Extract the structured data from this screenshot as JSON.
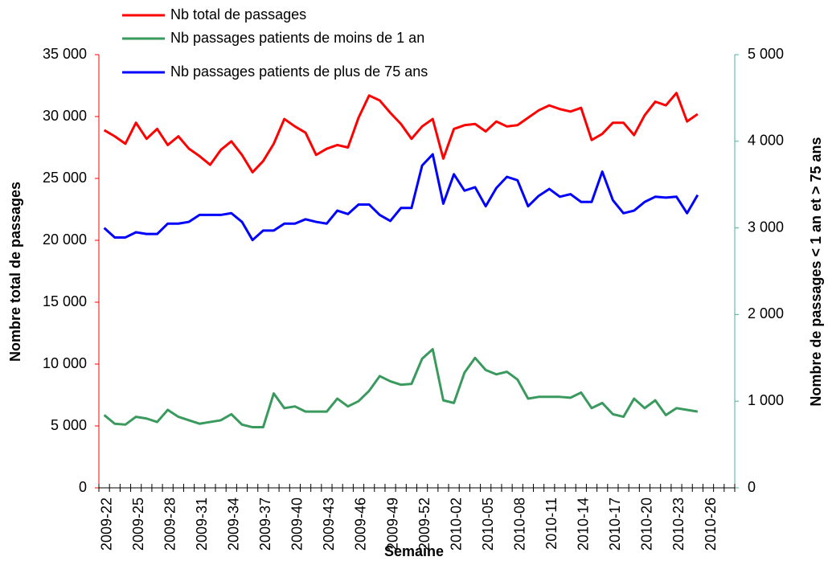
{
  "chart_data": {
    "type": "line",
    "xlabel": "Semaine",
    "ylabel": "Nombre total de passages",
    "y2label": "Nombre de passages < 1 an et > 75 ans",
    "categories": [
      "2009-22",
      null,
      null,
      "2009-25",
      null,
      null,
      "2009-28",
      null,
      null,
      "2009-31",
      null,
      null,
      "2009-34",
      null,
      null,
      "2009-37",
      null,
      null,
      "2009-40",
      null,
      null,
      "2009-43",
      null,
      null,
      "2009-46",
      null,
      null,
      "2009-49",
      null,
      null,
      "2009-52",
      null,
      null,
      "2010-02",
      null,
      null,
      "2010-05",
      null,
      null,
      "2010-08",
      null,
      null,
      "2010-11",
      null,
      null,
      "2010-14",
      null,
      null,
      "2010-17",
      null,
      null,
      "2010-20",
      null,
      null,
      "2010-23",
      null,
      null,
      "2010-26",
      null,
      null
    ],
    "series": [
      {
        "name": "Nb total de passages",
        "color": "#ff0000",
        "axis": "y",
        "values": [
          28900,
          28400,
          27800,
          29500,
          28200,
          29000,
          27700,
          28400,
          27400,
          26800,
          26100,
          27300,
          28000,
          26900,
          25500,
          26400,
          27800,
          29800,
          29200,
          28700,
          26900,
          27400,
          27700,
          27500,
          29900,
          31700,
          31300,
          30300,
          29400,
          28200,
          29200,
          29800,
          26600,
          29000,
          29300,
          29400,
          28800,
          29600,
          29200,
          29300,
          29900,
          30500,
          30900,
          30600,
          30400,
          30700,
          28100,
          28600,
          29500,
          29500,
          28500,
          30100,
          31200,
          30900,
          31900,
          29600,
          30200,
          null,
          null,
          null
        ]
      },
      {
        "name": "Nb passages patients de moins de 1 an",
        "color": "#3a9a5e",
        "axis": "y2",
        "values": [
          840,
          740,
          730,
          820,
          800,
          760,
          900,
          820,
          780,
          740,
          760,
          780,
          850,
          730,
          700,
          700,
          1090,
          920,
          940,
          880,
          880,
          880,
          1030,
          940,
          1000,
          1120,
          1290,
          1230,
          1190,
          1200,
          1490,
          1600,
          1010,
          980,
          1330,
          1500,
          1360,
          1310,
          1340,
          1250,
          1030,
          1050,
          1050,
          1050,
          1040,
          1100,
          920,
          980,
          850,
          820,
          1030,
          920,
          1010,
          840,
          920,
          900,
          880,
          null,
          null,
          null
        ]
      },
      {
        "name": "Nb passages patients de plus de 75 ans",
        "color": "#0000ff",
        "axis": "y2",
        "values": [
          3000,
          2890,
          2890,
          2950,
          2930,
          2930,
          3050,
          3050,
          3070,
          3150,
          3150,
          3150,
          3170,
          3070,
          2860,
          2970,
          2970,
          3050,
          3050,
          3100,
          3070,
          3050,
          3200,
          3160,
          3270,
          3270,
          3150,
          3080,
          3230,
          3230,
          3720,
          3850,
          3280,
          3620,
          3430,
          3470,
          3250,
          3460,
          3590,
          3550,
          3250,
          3370,
          3450,
          3360,
          3390,
          3300,
          3300,
          3650,
          3320,
          3170,
          3200,
          3300,
          3360,
          3350,
          3360,
          3170,
          3380,
          null,
          null,
          null
        ]
      }
    ],
    "ylim": [
      0,
      35000
    ],
    "yticks": [
      0,
      {
        "value": 5000,
        "label": "5 000"
      },
      {
        "value": 10000,
        "label": "10 000"
      },
      {
        "value": 15000,
        "label": "15 000"
      },
      {
        "value": 20000,
        "label": "20 000"
      },
      {
        "value": 25000,
        "label": "25 000"
      },
      {
        "value": 30000,
        "label": "30 000"
      },
      {
        "value": 35000,
        "label": "35 000"
      }
    ],
    "y2lim": [
      0,
      5000
    ],
    "y2ticks": [
      0,
      {
        "value": 1000,
        "label": "1 000"
      },
      {
        "value": 2000,
        "label": "2 000"
      },
      {
        "value": 3000,
        "label": "3 000"
      },
      {
        "value": 4000,
        "label": "4 000"
      },
      {
        "value": 5000,
        "label": "5 000"
      }
    ],
    "yaxis_color": "#ff0000",
    "y2axis_color": "#4fae98"
  }
}
